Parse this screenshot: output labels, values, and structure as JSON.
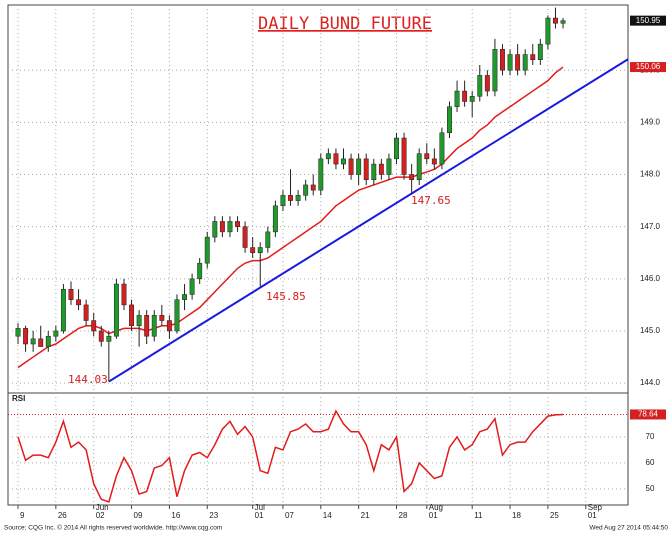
{
  "chart_data": {
    "type": "candlestick",
    "title": "DAILY BUND FUTURE",
    "categories": [
      "9",
      null,
      null,
      null,
      null,
      "26",
      null,
      null,
      null,
      null,
      "02",
      null,
      null,
      null,
      null,
      "09",
      null,
      null,
      null,
      null,
      "16",
      null,
      null,
      null,
      null,
      "23",
      null,
      null,
      null,
      null,
      null,
      "01",
      null,
      null,
      null,
      "07",
      null,
      null,
      null,
      null,
      "14",
      null,
      null,
      null,
      null,
      "21",
      null,
      null,
      null,
      null,
      "28",
      null,
      null,
      null,
      "01",
      null,
      null,
      null,
      null,
      null,
      "11",
      null,
      null,
      null,
      null,
      "18",
      null,
      null,
      null,
      null,
      "25",
      null,
      null,
      null,
      null,
      "01"
    ],
    "category_months": [
      null,
      null,
      null,
      null,
      null,
      null,
      null,
      null,
      null,
      null,
      "Jun",
      null,
      null,
      null,
      null,
      null,
      null,
      null,
      null,
      null,
      null,
      null,
      null,
      null,
      null,
      null,
      null,
      null,
      null,
      null,
      null,
      "Jul",
      null,
      null,
      null,
      null,
      null,
      null,
      null,
      null,
      null,
      null,
      null,
      null,
      null,
      null,
      null,
      null,
      null,
      null,
      null,
      null,
      null,
      null,
      "Aug",
      null,
      null,
      null,
      null,
      null,
      null,
      null,
      null,
      null,
      null,
      null,
      null,
      null,
      null,
      null,
      null,
      null,
      null,
      null,
      null,
      "Sep"
    ],
    "open": [
      144.9,
      145.05,
      144.75,
      144.85,
      144.7,
      144.9,
      145.0,
      145.8,
      145.6,
      145.5,
      145.2,
      145.0,
      144.8,
      144.9,
      145.9,
      145.5,
      145.1,
      145.3,
      144.9,
      145.3,
      145.2,
      145.0,
      145.6,
      145.7,
      146.0,
      146.3,
      146.8,
      147.1,
      146.9,
      147.1,
      147.0,
      146.6,
      146.5,
      146.6,
      146.9,
      147.4,
      147.6,
      147.5,
      147.6,
      147.8,
      147.7,
      148.3,
      148.4,
      148.2,
      148.3,
      148.0,
      148.3,
      147.9,
      148.2,
      148.0,
      148.3,
      148.7,
      148.0,
      147.9,
      148.4,
      148.3,
      148.2,
      148.8,
      149.3,
      149.6,
      149.4,
      149.5,
      149.9,
      149.6,
      150.4,
      150.0,
      150.3,
      150.0,
      150.3,
      150.2,
      150.5,
      151.0,
      150.9,
      null,
      null,
      null
    ],
    "high": [
      145.15,
      145.1,
      145.0,
      145.1,
      145.0,
      145.1,
      145.9,
      145.95,
      145.8,
      145.6,
      145.35,
      145.1,
      145.0,
      146.0,
      146.0,
      145.6,
      145.4,
      145.4,
      145.4,
      145.5,
      145.3,
      145.7,
      145.9,
      146.1,
      146.4,
      146.9,
      147.2,
      147.2,
      147.2,
      147.2,
      147.1,
      146.8,
      146.7,
      147.0,
      147.5,
      147.7,
      148.1,
      147.7,
      147.9,
      148.0,
      148.4,
      148.5,
      148.5,
      148.5,
      148.4,
      148.4,
      148.4,
      148.3,
      148.3,
      148.4,
      148.8,
      148.8,
      148.2,
      148.5,
      148.6,
      148.5,
      148.9,
      149.4,
      149.8,
      149.8,
      149.6,
      150.1,
      150.0,
      150.6,
      150.5,
      150.4,
      150.5,
      150.4,
      150.5,
      150.6,
      151.05,
      151.2,
      151.0,
      null,
      null,
      null
    ],
    "low": [
      144.75,
      144.6,
      144.6,
      144.7,
      144.6,
      144.8,
      144.95,
      145.5,
      145.4,
      145.1,
      144.9,
      144.7,
      144.03,
      144.85,
      145.4,
      145.0,
      144.7,
      144.75,
      144.8,
      145.1,
      144.85,
      144.95,
      145.4,
      145.6,
      145.9,
      146.2,
      146.7,
      146.8,
      146.8,
      146.9,
      146.5,
      146.4,
      145.85,
      146.5,
      146.8,
      147.3,
      147.4,
      147.4,
      147.5,
      147.6,
      147.6,
      148.2,
      148.1,
      148.1,
      147.9,
      147.8,
      147.8,
      147.8,
      147.9,
      147.9,
      148.2,
      147.9,
      147.65,
      147.8,
      148.2,
      148.1,
      148.1,
      148.7,
      149.2,
      149.3,
      149.1,
      149.4,
      149.5,
      149.5,
      149.9,
      149.9,
      149.9,
      149.9,
      150.1,
      150.1,
      150.4,
      150.8,
      150.8,
      null,
      null,
      null
    ],
    "close": [
      145.05,
      144.75,
      144.85,
      144.7,
      144.9,
      145.0,
      145.8,
      145.6,
      145.5,
      145.2,
      145.0,
      144.8,
      144.9,
      145.9,
      145.5,
      145.1,
      145.3,
      144.9,
      145.3,
      145.2,
      145.0,
      145.6,
      145.7,
      146.0,
      146.3,
      146.8,
      147.1,
      146.9,
      147.1,
      147.0,
      146.6,
      146.5,
      146.6,
      146.9,
      147.4,
      147.6,
      147.5,
      147.6,
      147.8,
      147.7,
      148.3,
      148.4,
      148.2,
      148.3,
      148.0,
      148.3,
      147.9,
      148.2,
      148.0,
      148.3,
      148.7,
      148.0,
      147.9,
      148.4,
      148.3,
      148.2,
      148.8,
      149.3,
      149.6,
      149.4,
      149.5,
      149.9,
      149.6,
      150.4,
      150.0,
      150.3,
      150.0,
      150.3,
      150.2,
      150.5,
      151.0,
      150.9,
      150.95,
      null,
      null,
      null
    ],
    "ma": [
      144.3,
      144.4,
      144.5,
      144.6,
      144.7,
      144.75,
      144.85,
      144.95,
      145.05,
      145.1,
      145.1,
      145.05,
      144.95,
      145.0,
      145.05,
      145.05,
      145.05,
      145.0,
      145.05,
      145.1,
      145.1,
      145.15,
      145.25,
      145.35,
      145.45,
      145.6,
      145.75,
      145.9,
      146.05,
      146.2,
      146.3,
      146.35,
      146.35,
      146.4,
      146.5,
      146.6,
      146.7,
      146.8,
      146.9,
      147.0,
      147.1,
      147.25,
      147.4,
      147.5,
      147.6,
      147.7,
      147.75,
      147.8,
      147.85,
      147.9,
      147.95,
      147.95,
      147.95,
      148.0,
      148.05,
      148.1,
      148.2,
      148.35,
      148.5,
      148.6,
      148.7,
      148.85,
      148.95,
      149.1,
      149.2,
      149.3,
      149.4,
      149.5,
      149.6,
      149.7,
      149.8,
      149.95,
      150.06,
      null,
      null,
      null
    ],
    "trend_line": [
      144.03,
      150.21
    ],
    "up_color": "#1f9a2a",
    "down_color": "#d42020",
    "ma_color": "#e31b1b",
    "trend_color": "#1a1ae0",
    "ylim": [
      143.83,
      151.25
    ],
    "yticks": [
      {
        "value": 144,
        "label": "144.0"
      },
      {
        "value": 145,
        "label": "145.0"
      },
      {
        "value": 146,
        "label": "146.0"
      },
      {
        "value": 147,
        "label": "147.0"
      },
      {
        "value": 148,
        "label": "148.0"
      },
      {
        "value": 149,
        "label": "149.0"
      },
      {
        "value": 150,
        "label": "150.0"
      }
    ],
    "rsi_label": "RSI",
    "rsi": [
      70,
      61,
      63,
      63,
      62,
      68,
      76,
      66,
      68,
      65,
      52,
      46,
      45,
      55,
      62,
      57,
      48,
      49,
      58,
      59,
      62,
      47,
      57,
      63,
      64,
      62,
      67,
      73,
      76,
      71,
      74,
      70,
      57,
      56,
      66,
      65,
      72,
      73,
      75,
      72,
      72,
      73,
      80,
      75,
      72,
      72,
      67,
      57,
      67,
      65,
      70,
      49,
      52,
      60,
      57,
      54,
      55,
      66,
      70,
      65,
      67,
      72,
      73,
      77,
      63,
      67,
      68,
      68,
      72,
      75,
      78,
      78.5,
      78.64,
      null,
      null,
      null
    ],
    "rsi_ylim": [
      43.8,
      86.9
    ],
    "rsi_yticks": [
      50,
      60,
      70
    ],
    "source": "Source: CQG Inc. © 2014 All rights reserved worldwide. http://www.cqg.com",
    "timestamp": "Wed Aug 27 2014 05:44:50"
  }
}
